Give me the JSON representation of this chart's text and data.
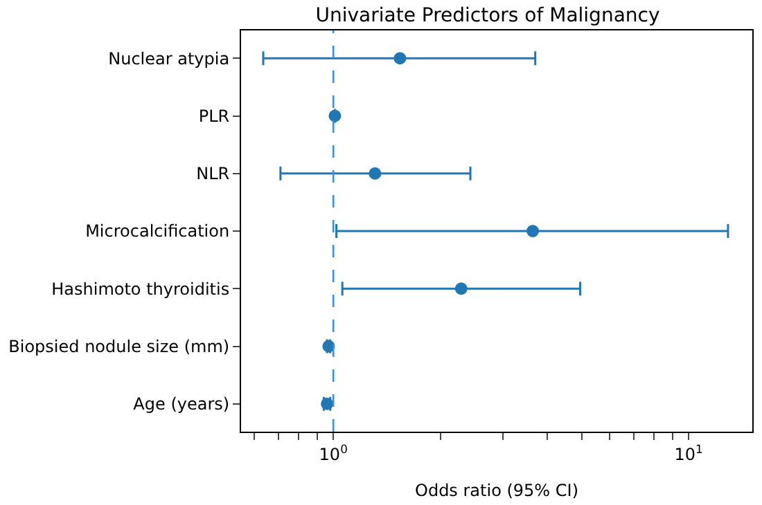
{
  "chart_data": {
    "type": "scatter",
    "orientation": "horizontal",
    "title": "Univariate Predictors of Malignancy",
    "xlabel": "Odds ratio (95% CI)",
    "categories": [
      "Nuclear atypia",
      "PLR",
      "NLR",
      "Microcalcification",
      "Hashimoto thyroiditis",
      "Biopsied nodule size (mm)",
      "Age (years)"
    ],
    "series": [
      {
        "color": "#1f77b4",
        "values": [
          1.54,
          1.01,
          1.31,
          3.64,
          2.29,
          0.97,
          0.96
        ],
        "errors": [
          [
            0.635,
            3.7
          ],
          null,
          [
            0.71,
            2.43
          ],
          [
            1.02,
            12.9
          ],
          [
            1.06,
            4.95
          ],
          [
            0.96,
            0.98
          ],
          [
            0.94,
            0.98
          ]
        ]
      }
    ],
    "log": "x",
    "xlim": [
      0.55,
      15.1
    ],
    "xticks": [
      {
        "value": 0.6,
        "label": null
      },
      {
        "value": 0.7,
        "label": null
      },
      {
        "value": 0.8,
        "label": null
      },
      {
        "value": 0.9,
        "label": null
      },
      {
        "value": 1,
        "label": "10$^{0}$"
      },
      {
        "value": 2,
        "label": null
      },
      {
        "value": 3,
        "label": null
      },
      {
        "value": 4,
        "label": null
      },
      {
        "value": 5,
        "label": null
      },
      {
        "value": 6,
        "label": null
      },
      {
        "value": 7,
        "label": null
      },
      {
        "value": 8,
        "label": null
      },
      {
        "value": 9,
        "label": null
      },
      {
        "value": 10,
        "label": "10$^{1}$"
      }
    ],
    "ref_lines": [
      {
        "axis": "x",
        "value": 1,
        "color": "#3a8fd9",
        "line_style": "dashed"
      }
    ],
    "marker": "circle"
  }
}
